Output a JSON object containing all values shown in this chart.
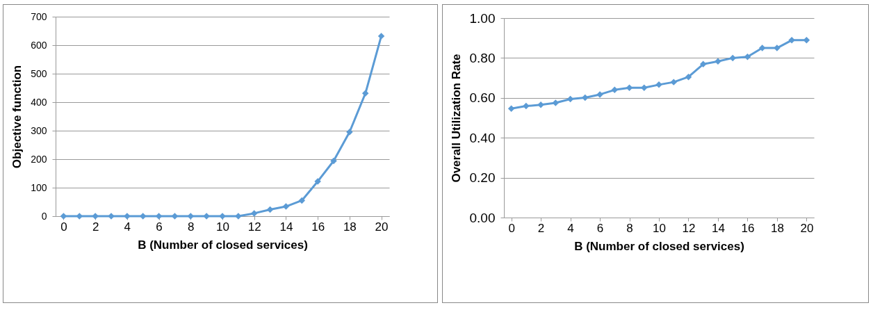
{
  "chart_data": [
    {
      "type": "line",
      "xlabel": "B (Number of closed services)",
      "ylabel": "Objective function",
      "x": [
        0,
        1,
        2,
        3,
        4,
        5,
        6,
        7,
        8,
        9,
        10,
        11,
        12,
        13,
        14,
        15,
        16,
        17,
        18,
        19,
        20
      ],
      "values": [
        0,
        0,
        0,
        0,
        0,
        0,
        0,
        0,
        0,
        0,
        0,
        0,
        10,
        23,
        34,
        55,
        122,
        194,
        295,
        431,
        632
      ],
      "color": "#5b9bd5",
      "xlim": [
        -0.5,
        20.5
      ],
      "ylim": [
        0,
        700
      ],
      "xticks": [
        0,
        2,
        4,
        6,
        8,
        10,
        12,
        14,
        16,
        18,
        20
      ],
      "yticks": [
        0,
        100,
        200,
        300,
        400,
        500,
        600,
        700
      ],
      "grid": "y",
      "marker": "diamond"
    },
    {
      "type": "line",
      "xlabel": "B (Number of closed services)",
      "ylabel": "Overall Utilization Rate",
      "x": [
        0,
        1,
        2,
        3,
        4,
        5,
        6,
        7,
        8,
        9,
        10,
        11,
        12,
        13,
        14,
        15,
        16,
        17,
        18,
        19,
        20
      ],
      "values": [
        0.546,
        0.559,
        0.565,
        0.575,
        0.594,
        0.601,
        0.617,
        0.64,
        0.651,
        0.651,
        0.666,
        0.679,
        0.705,
        0.769,
        0.783,
        0.8,
        0.806,
        0.85,
        0.85,
        0.889,
        0.889
      ],
      "color": "#5b9bd5",
      "xlim": [
        -0.5,
        20.5
      ],
      "ylim": [
        0,
        1
      ],
      "xticks": [
        0,
        2,
        4,
        6,
        8,
        10,
        12,
        14,
        16,
        18,
        20
      ],
      "yticks": [
        {
          "value": 0,
          "label": "0.00"
        },
        {
          "value": 0.2,
          "label": "0.20"
        },
        {
          "value": 0.4,
          "label": "0.40"
        },
        {
          "value": 0.6,
          "label": "0.60"
        },
        {
          "value": 0.8,
          "label": "0.80"
        },
        {
          "value": 1,
          "label": "1.00"
        }
      ],
      "grid": "y",
      "marker": "diamond"
    }
  ]
}
